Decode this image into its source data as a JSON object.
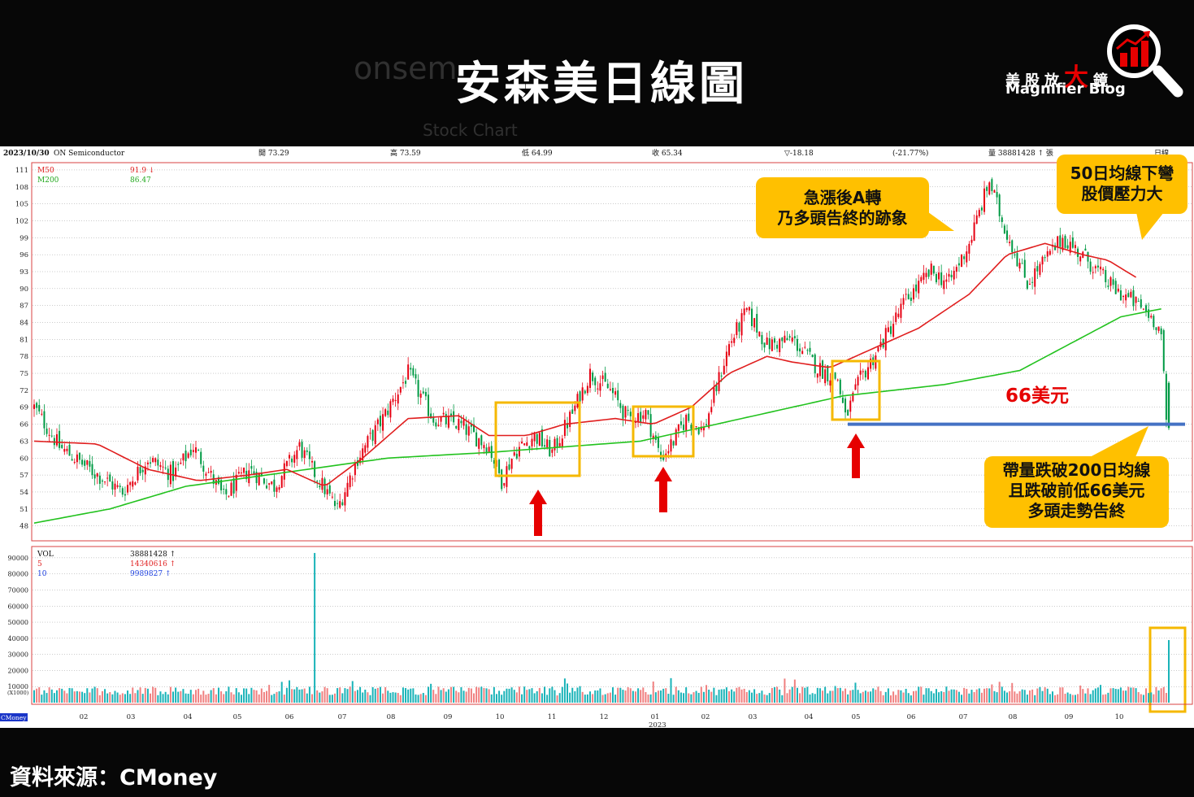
{
  "page_title": "安森美日線圖",
  "logo": {
    "cn_prefix": "美股放",
    "cn_big": "大",
    "cn_suffix": "鏡",
    "en": "Magnifier Blog"
  },
  "source_text": "資料來源：CMoney",
  "header": {
    "date": "2023/10/30",
    "name": "ON Semiconductor",
    "open": "開 73.29",
    "high": "高 73.59",
    "low": "低 64.99",
    "close": "收 65.34",
    "change": "▽-18.18",
    "change_pct": "(-21.77%)",
    "volume": "量 38881428 ↑ 張",
    "period": "日線"
  },
  "price_legend": {
    "ma50_label": "M50",
    "ma50_value": "91.9 ↓",
    "ma200_label": "M200",
    "ma200_value": "86.47"
  },
  "volume_legend": {
    "vol_label": "VOL",
    "vol_value": "38881428 ↑",
    "ma5_label": "5",
    "ma5_value": "14340616 ↑",
    "ma10_label": "10",
    "ma10_value": "9989827 ↑"
  },
  "brand_tag": "CMoney",
  "annotations": {
    "a_turn": [
      "急漲後A轉",
      "乃多頭告終的跡象"
    ],
    "ma50_down": [
      "50日均線下彎",
      "股價壓力大"
    ],
    "break": [
      "帶量跌破200日均線",
      "且跌破前低66美元",
      "多頭走勢告終"
    ],
    "price_66": "66美元"
  },
  "colors": {
    "up": "#e60012",
    "down": "#009a44",
    "ma50": "#e01e1e",
    "ma200": "#22c21e",
    "volume": "#19b3b8",
    "volume_up": "#f08080",
    "support": "#4472c4",
    "box": "#f5b800",
    "arrow": "#e60000"
  },
  "chart_data": {
    "type": "candlestick",
    "price_axis": {
      "ticks": [
        48,
        51,
        54,
        57,
        60,
        63,
        66,
        69,
        72,
        75,
        78,
        81,
        84,
        87,
        90,
        93,
        96,
        99,
        102,
        105,
        108,
        111
      ],
      "ylim": [
        45.5,
        112
      ]
    },
    "volume_axis": {
      "ticks": [
        10000,
        20000,
        30000,
        40000,
        50000,
        60000,
        70000,
        80000,
        90000
      ],
      "tick_labels": [
        "10000",
        "20000",
        "30000",
        "40000",
        "50000",
        "60000",
        "70000",
        "80000",
        "90000"
      ],
      "unit_label": "(X1000)",
      "ylim": [
        0,
        96000
      ]
    },
    "x_months": [
      "02",
      "03",
      "04",
      "05",
      "06",
      "07",
      "08",
      "09",
      "10",
      "11",
      "12",
      "01",
      "02",
      "03",
      "04",
      "05",
      "06",
      "07",
      "08",
      "09",
      "10"
    ],
    "year_label": "2023",
    "close_path": [
      [
        0,
        69
      ],
      [
        10,
        62
      ],
      [
        22,
        58
      ],
      [
        35,
        54
      ],
      [
        45,
        60
      ],
      [
        55,
        57
      ],
      [
        63,
        62
      ],
      [
        75,
        53
      ],
      [
        85,
        58
      ],
      [
        95,
        55
      ],
      [
        105,
        62
      ],
      [
        110,
        58
      ],
      [
        120,
        51
      ],
      [
        128,
        60
      ],
      [
        138,
        67
      ],
      [
        148,
        75
      ],
      [
        158,
        67
      ],
      [
        168,
        66
      ],
      [
        180,
        62
      ],
      [
        185,
        56
      ],
      [
        190,
        61
      ],
      [
        198,
        64
      ],
      [
        205,
        61
      ],
      [
        213,
        68
      ],
      [
        220,
        75
      ],
      [
        228,
        72
      ],
      [
        235,
        67
      ],
      [
        242,
        68
      ],
      [
        248,
        60
      ],
      [
        253,
        63
      ],
      [
        258,
        67
      ],
      [
        265,
        65
      ],
      [
        275,
        80
      ],
      [
        282,
        86
      ],
      [
        290,
        80
      ],
      [
        300,
        81
      ],
      [
        310,
        76
      ],
      [
        318,
        74
      ],
      [
        321,
        67
      ],
      [
        327,
        74
      ],
      [
        335,
        80
      ],
      [
        345,
        88
      ],
      [
        355,
        93
      ],
      [
        362,
        91
      ],
      [
        370,
        98
      ],
      [
        378,
        109
      ],
      [
        383,
        102
      ],
      [
        393,
        91
      ],
      [
        400,
        95
      ],
      [
        407,
        99
      ],
      [
        417,
        95
      ],
      [
        427,
        90
      ],
      [
        434,
        88
      ],
      [
        440,
        86
      ],
      [
        444,
        84
      ],
      [
        446,
        82
      ],
      [
        448,
        66
      ]
    ],
    "ma50_path": [
      [
        0,
        63
      ],
      [
        25,
        62.5
      ],
      [
        45,
        58
      ],
      [
        65,
        56
      ],
      [
        85,
        57
      ],
      [
        100,
        58
      ],
      [
        115,
        55
      ],
      [
        130,
        60
      ],
      [
        148,
        67
      ],
      [
        168,
        67.5
      ],
      [
        180,
        64
      ],
      [
        195,
        64
      ],
      [
        210,
        66
      ],
      [
        230,
        67
      ],
      [
        245,
        66
      ],
      [
        260,
        69
      ],
      [
        275,
        75
      ],
      [
        290,
        78
      ],
      [
        300,
        77
      ],
      [
        315,
        76
      ],
      [
        330,
        79
      ],
      [
        350,
        83
      ],
      [
        370,
        89
      ],
      [
        385,
        96
      ],
      [
        400,
        98
      ],
      [
        415,
        96
      ],
      [
        425,
        95
      ],
      [
        436,
        92
      ]
    ],
    "ma200_path": [
      [
        0,
        48.5
      ],
      [
        30,
        51
      ],
      [
        60,
        55
      ],
      [
        100,
        57.5
      ],
      [
        140,
        60
      ],
      [
        180,
        61
      ],
      [
        240,
        63
      ],
      [
        280,
        67
      ],
      [
        320,
        71
      ],
      [
        360,
        73
      ],
      [
        390,
        75.5
      ],
      [
        430,
        85
      ],
      [
        447,
        86.5
      ]
    ],
    "total_bars": 450,
    "annotations_data": {
      "support_level": 66,
      "volume_spike_bar_index": 111,
      "volume_spike_value": 93000,
      "last_volume_value": 38881
    }
  }
}
